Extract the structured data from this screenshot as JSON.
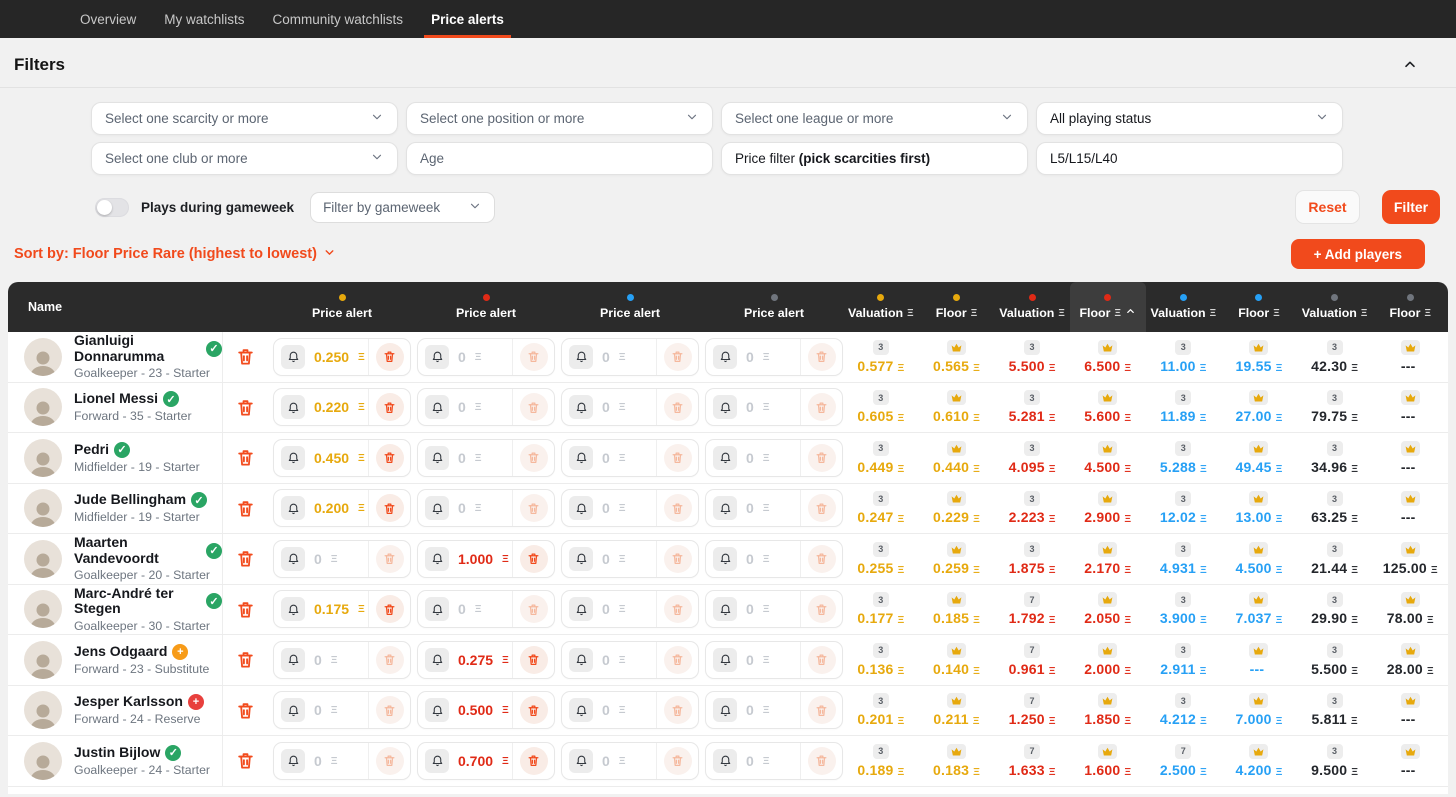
{
  "nav": {
    "tabs": [
      {
        "label": "Overview",
        "active": false
      },
      {
        "label": "My watchlists",
        "active": false
      },
      {
        "label": "Community watchlists",
        "active": false
      },
      {
        "label": "Price alerts",
        "active": true
      }
    ]
  },
  "filters": {
    "title": "Filters",
    "selects_row1": [
      {
        "name": "scarcity-filter",
        "value": "Select one scarcity or more",
        "muted": true,
        "chevron": true
      },
      {
        "name": "position-filter",
        "value": "Select one position or more",
        "muted": true,
        "chevron": true
      },
      {
        "name": "league-filter",
        "value": "Select one league or more",
        "muted": true,
        "chevron": true
      },
      {
        "name": "playing-status-filter",
        "value": "All playing status",
        "muted": false,
        "chevron": true
      }
    ],
    "selects_row2": [
      {
        "name": "club-filter",
        "value": "Select one club or more",
        "muted": true,
        "chevron": true
      },
      {
        "name": "age-filter",
        "value": "Age",
        "muted": true,
        "chevron": false
      },
      {
        "name": "price-filter",
        "value": "Price filter ",
        "bold_part": "(pick scarcities first)",
        "muted": false,
        "chevron": false
      },
      {
        "name": "serial-filter",
        "value": "L5/L15/L40",
        "muted": false,
        "chevron": false
      }
    ],
    "toggle_label": "Plays during gameweek",
    "toggle_on": false,
    "gameweek_select": "Filter by gameweek",
    "reset_label": "Reset",
    "apply_label": "Filter"
  },
  "toolbar": {
    "sort_label": "Sort by: Floor Price Rare (highest to lowest)",
    "add_players_label": "+ Add players"
  },
  "icons": {
    "eth": "Ξ",
    "sort": "Ξ",
    "check": "✓",
    "plus": "+"
  },
  "colors": {
    "accent_orange": "#f14a1c",
    "gold": "#e7a90d",
    "red": "#e02a16",
    "blue": "#26a0f5",
    "dark": "#24272c",
    "gray_dot": "#70757d",
    "green_status": "#2aa564",
    "orange_status": "#f79b18",
    "red_status": "#e8403d"
  },
  "table": {
    "name_header": "Name",
    "alert_columns": [
      {
        "label": "Price alert",
        "dot": "#e7a90d",
        "color": "gold"
      },
      {
        "label": "Price alert",
        "dot": "#e02a16",
        "color": "red"
      },
      {
        "label": "Price alert",
        "dot": "#26a0f5",
        "color": "blue"
      },
      {
        "label": "Price alert",
        "dot": "#70757d",
        "color": "dark"
      }
    ],
    "value_columns": [
      {
        "label": "Valuation",
        "dot": "#e7a90d",
        "color": "gold",
        "active": false
      },
      {
        "label": "Floor",
        "dot": "#e7a90d",
        "color": "gold",
        "active": false
      },
      {
        "label": "Valuation",
        "dot": "#e02a16",
        "color": "red",
        "active": false
      },
      {
        "label": "Floor",
        "dot": "#e02a16",
        "color": "red",
        "active": true
      },
      {
        "label": "Valuation",
        "dot": "#26a0f5",
        "color": "blue",
        "active": false
      },
      {
        "label": "Floor",
        "dot": "#26a0f5",
        "color": "blue",
        "active": false
      },
      {
        "label": "Valuation",
        "dot": "#70757d",
        "color": "dark",
        "active": false
      },
      {
        "label": "Floor",
        "dot": "#70757d",
        "color": "dark",
        "active": false
      }
    ],
    "rows": [
      {
        "name": "Gianluigi Donnarumma",
        "meta": "Goalkeeper - 23 - Starter",
        "status": "check",
        "alerts": [
          "0.250",
          "0",
          "0",
          "0"
        ],
        "values": [
          [
            "3",
            "0.577"
          ],
          [
            "crown",
            "0.565"
          ],
          [
            "3",
            "5.500"
          ],
          [
            "crown",
            "6.500"
          ],
          [
            "3",
            "11.00"
          ],
          [
            "crown",
            "19.55"
          ],
          [
            "3",
            "42.30"
          ],
          [
            "crown",
            "---"
          ]
        ]
      },
      {
        "name": "Lionel Messi",
        "meta": "Forward - 35 - Starter",
        "status": "check",
        "alerts": [
          "0.220",
          "0",
          "0",
          "0"
        ],
        "values": [
          [
            "3",
            "0.605"
          ],
          [
            "crown",
            "0.610"
          ],
          [
            "3",
            "5.281"
          ],
          [
            "crown",
            "5.600"
          ],
          [
            "3",
            "11.89"
          ],
          [
            "crown",
            "27.00"
          ],
          [
            "3",
            "79.75"
          ],
          [
            "crown",
            "---"
          ]
        ]
      },
      {
        "name": "Pedri",
        "meta": "Midfielder - 19 - Starter",
        "status": "check",
        "alerts": [
          "0.450",
          "0",
          "0",
          "0"
        ],
        "values": [
          [
            "3",
            "0.449"
          ],
          [
            "crown",
            "0.440"
          ],
          [
            "3",
            "4.095"
          ],
          [
            "crown",
            "4.500"
          ],
          [
            "3",
            "5.288"
          ],
          [
            "crown",
            "49.45"
          ],
          [
            "3",
            "34.96"
          ],
          [
            "crown",
            "---"
          ]
        ]
      },
      {
        "name": "Jude Bellingham",
        "meta": "Midfielder - 19 - Starter",
        "status": "check",
        "alerts": [
          "0.200",
          "0",
          "0",
          "0"
        ],
        "values": [
          [
            "3",
            "0.247"
          ],
          [
            "crown",
            "0.229"
          ],
          [
            "3",
            "2.223"
          ],
          [
            "crown",
            "2.900"
          ],
          [
            "3",
            "12.02"
          ],
          [
            "crown",
            "13.00"
          ],
          [
            "3",
            "63.25"
          ],
          [
            "crown",
            "---"
          ]
        ]
      },
      {
        "name": "Maarten Vandevoordt",
        "meta": "Goalkeeper - 20 - Starter",
        "status": "check",
        "alerts": [
          "0",
          "1.000",
          "0",
          "0"
        ],
        "values": [
          [
            "3",
            "0.255"
          ],
          [
            "crown",
            "0.259"
          ],
          [
            "3",
            "1.875"
          ],
          [
            "crown",
            "2.170"
          ],
          [
            "3",
            "4.931"
          ],
          [
            "crown",
            "4.500"
          ],
          [
            "3",
            "21.44"
          ],
          [
            "crown",
            "125.00"
          ]
        ]
      },
      {
        "name": "Marc-André ter Stegen",
        "meta": "Goalkeeper - 30 - Starter",
        "status": "check",
        "alerts": [
          "0.175",
          "0",
          "0",
          "0"
        ],
        "values": [
          [
            "3",
            "0.177"
          ],
          [
            "crown",
            "0.185"
          ],
          [
            "7",
            "1.792"
          ],
          [
            "crown",
            "2.050"
          ],
          [
            "3",
            "3.900"
          ],
          [
            "crown",
            "7.037"
          ],
          [
            "3",
            "29.90"
          ],
          [
            "crown",
            "78.00"
          ]
        ]
      },
      {
        "name": "Jens Odgaard",
        "meta": "Forward - 23 - Substitute",
        "status": "plus-orange",
        "alerts": [
          "0",
          "0.275",
          "0",
          "0"
        ],
        "values": [
          [
            "3",
            "0.136"
          ],
          [
            "crown",
            "0.140"
          ],
          [
            "7",
            "0.961"
          ],
          [
            "crown",
            "2.000"
          ],
          [
            "3",
            "2.911"
          ],
          [
            "crown",
            "---"
          ],
          [
            "3",
            "5.500"
          ],
          [
            "crown",
            "28.00"
          ]
        ]
      },
      {
        "name": "Jesper Karlsson",
        "meta": "Forward - 24 - Reserve",
        "status": "plus-red",
        "alerts": [
          "0",
          "0.500",
          "0",
          "0"
        ],
        "values": [
          [
            "3",
            "0.201"
          ],
          [
            "crown",
            "0.211"
          ],
          [
            "7",
            "1.250"
          ],
          [
            "crown",
            "1.850"
          ],
          [
            "3",
            "4.212"
          ],
          [
            "crown",
            "7.000"
          ],
          [
            "3",
            "5.811"
          ],
          [
            "crown",
            "---"
          ]
        ]
      },
      {
        "name": "Justin Bijlow",
        "meta": "Goalkeeper - 24 - Starter",
        "status": "check",
        "alerts": [
          "0",
          "0.700",
          "0",
          "0"
        ],
        "values": [
          [
            "3",
            "0.189"
          ],
          [
            "crown",
            "0.183"
          ],
          [
            "7",
            "1.633"
          ],
          [
            "crown",
            "1.600"
          ],
          [
            "7",
            "2.500"
          ],
          [
            "crown",
            "4.200"
          ],
          [
            "3",
            "9.500"
          ],
          [
            "crown",
            "---"
          ]
        ]
      }
    ]
  }
}
